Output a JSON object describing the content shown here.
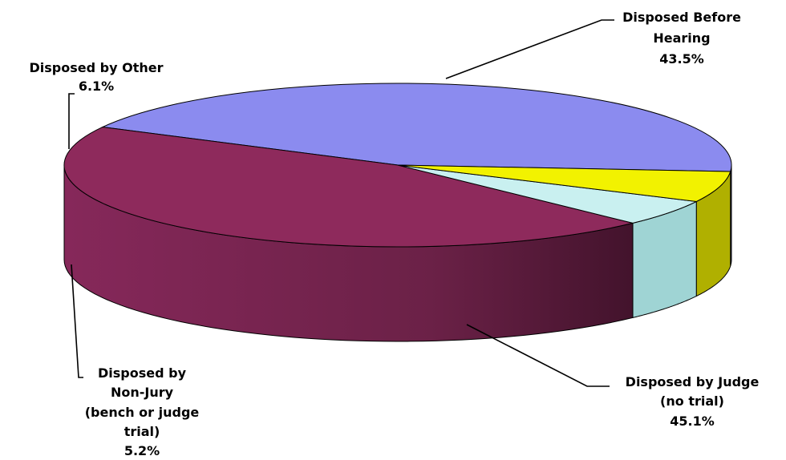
{
  "chart_data": {
    "type": "pie",
    "style": "3d",
    "title": "",
    "slices": [
      {
        "label_lines": [
          "Disposed Before",
          "Hearing"
        ],
        "value": 43.5,
        "value_label": "43.5%",
        "color": "#8b8bef"
      },
      {
        "label_lines": [
          "Disposed by Judge",
          "(no trial)"
        ],
        "value": 45.1,
        "value_label": "45.1%",
        "color": "#8e2a5c"
      },
      {
        "label_lines": [
          "Disposed by",
          "Non-Jury",
          "(bench or judge",
          "trial)"
        ],
        "value": 5.2,
        "value_label": "5.2%",
        "color": "#c9f0f0"
      },
      {
        "label_lines": [
          "Disposed by Other"
        ],
        "value": 6.1,
        "value_label": "6.1%",
        "color": "#f2f200"
      }
    ]
  }
}
